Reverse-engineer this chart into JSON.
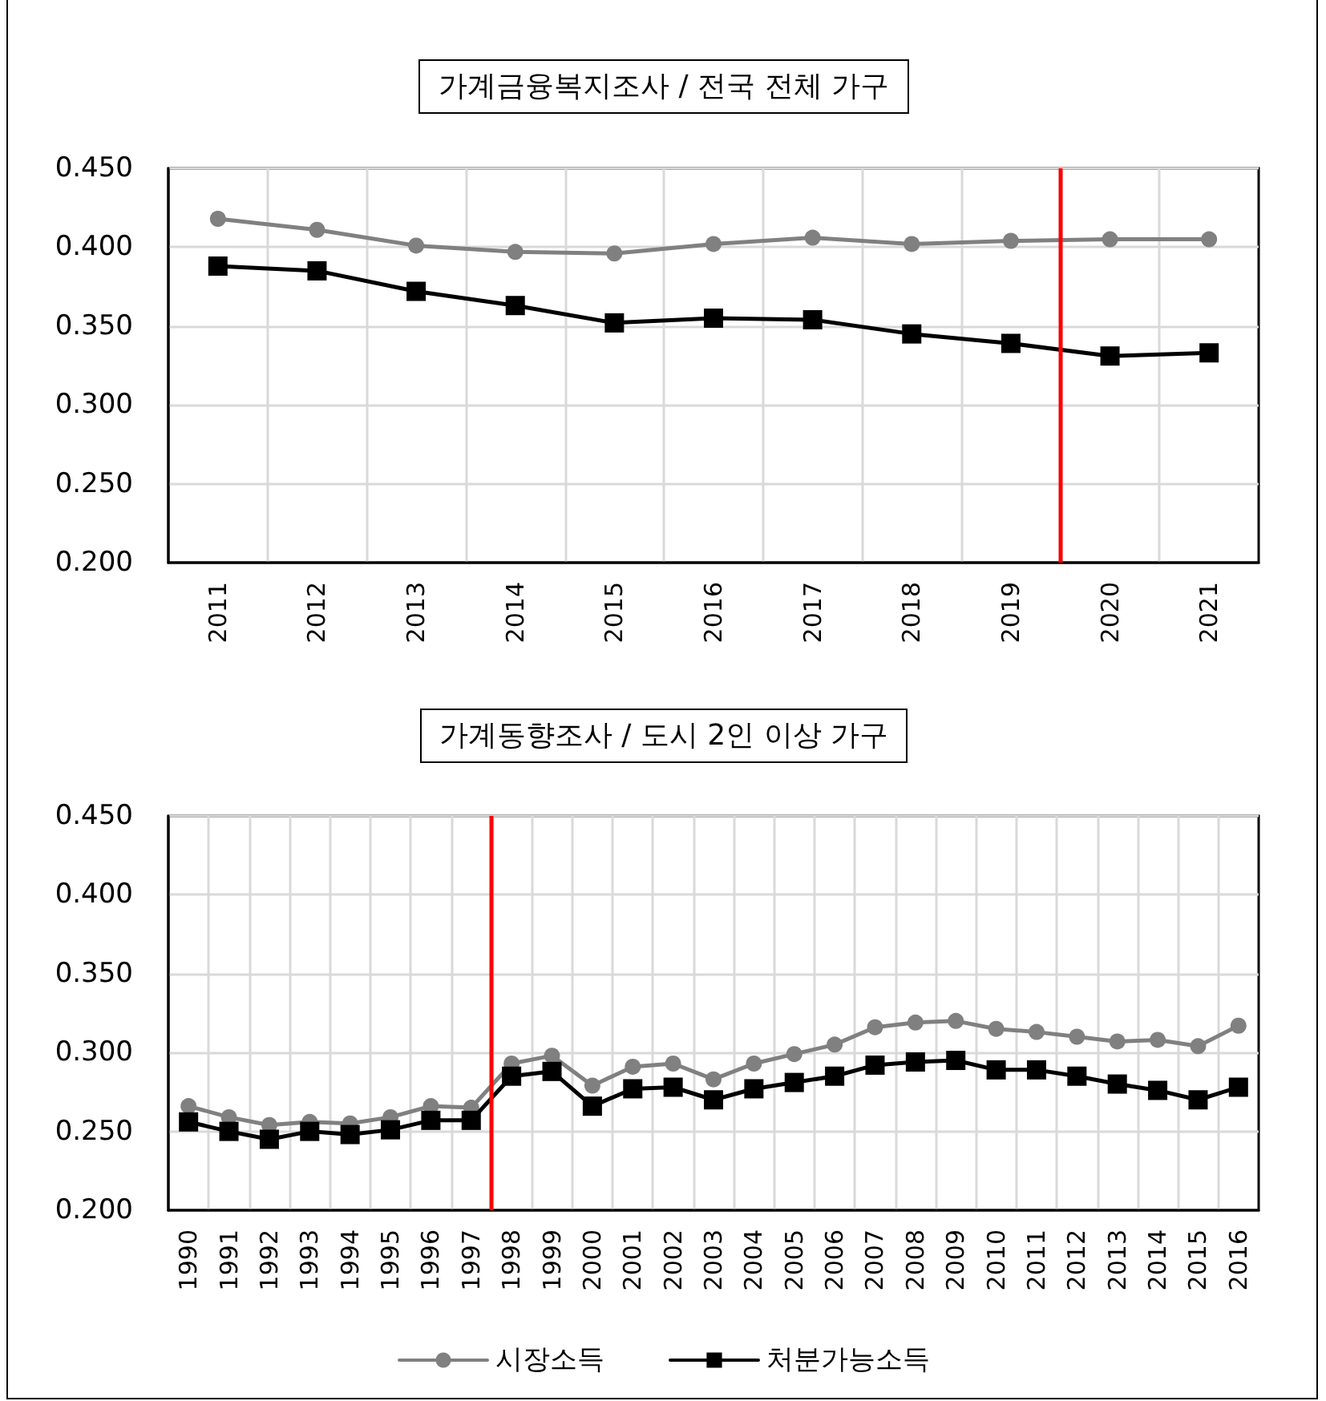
{
  "chart_data": [
    {
      "type": "line",
      "title": "가계금융복지조사 / 전국 전체 가구",
      "x": [
        2011,
        2012,
        2013,
        2014,
        2015,
        2016,
        2017,
        2018,
        2019,
        2020,
        2021
      ],
      "xlim": [
        2010.5,
        2021.5
      ],
      "xticks": [
        2011,
        2012,
        2013,
        2014,
        2015,
        2016,
        2017,
        2018,
        2019,
        2020,
        2021
      ],
      "ylim": [
        0.2,
        0.45
      ],
      "yticks": [
        {
          "value": 0.2,
          "label": "0.200"
        },
        {
          "value": 0.25,
          "label": "0.250"
        },
        {
          "value": 0.3,
          "label": "0.300"
        },
        {
          "value": 0.35,
          "label": "0.350"
        },
        {
          "value": 0.4,
          "label": "0.400"
        },
        {
          "value": 0.45,
          "label": "0.450"
        }
      ],
      "grid": true,
      "series": [
        {
          "color": "#808080",
          "marker": "circle",
          "values": [
            0.418,
            0.411,
            0.401,
            0.397,
            0.396,
            0.402,
            0.406,
            0.402,
            0.404,
            0.405,
            0.405
          ]
        },
        {
          "color": "#000000",
          "marker": "square",
          "values": [
            0.388,
            0.385,
            0.372,
            0.363,
            0.352,
            0.355,
            0.354,
            0.345,
            0.339,
            0.331,
            0.333
          ]
        }
      ],
      "ref_lines": [
        {
          "axis": "x",
          "value": 2019.5,
          "color": "#ff0000"
        }
      ]
    },
    {
      "type": "line",
      "title": "가계동향조사 / 도시 2인 이상 가구",
      "x": [
        1990,
        1991,
        1992,
        1993,
        1994,
        1995,
        1996,
        1997,
        1998,
        1999,
        2000,
        2001,
        2002,
        2003,
        2004,
        2005,
        2006,
        2007,
        2008,
        2009,
        2010,
        2011,
        2012,
        2013,
        2014,
        2015,
        2016
      ],
      "xlim": [
        1989.5,
        2016.5
      ],
      "xticks": [
        1990,
        1991,
        1992,
        1993,
        1994,
        1995,
        1996,
        1997,
        1998,
        1999,
        2000,
        2001,
        2002,
        2003,
        2004,
        2005,
        2006,
        2007,
        2008,
        2009,
        2010,
        2011,
        2012,
        2013,
        2014,
        2015,
        2016
      ],
      "ylim": [
        0.2,
        0.45
      ],
      "yticks": [
        {
          "value": 0.2,
          "label": "0.200"
        },
        {
          "value": 0.25,
          "label": "0.250"
        },
        {
          "value": 0.3,
          "label": "0.300"
        },
        {
          "value": 0.35,
          "label": "0.350"
        },
        {
          "value": 0.4,
          "label": "0.400"
        },
        {
          "value": 0.45,
          "label": "0.450"
        }
      ],
      "grid": true,
      "legend": "bottom",
      "series": [
        {
          "name": "시장소득",
          "color": "#808080",
          "marker": "circle",
          "values": [
            0.266,
            0.259,
            0.254,
            0.256,
            0.255,
            0.259,
            0.266,
            0.265,
            0.293,
            0.298,
            0.279,
            0.291,
            0.293,
            0.283,
            0.293,
            0.299,
            0.305,
            0.316,
            0.319,
            0.32,
            0.315,
            0.313,
            0.31,
            0.307,
            0.308,
            0.304,
            0.317
          ]
        },
        {
          "name": "처분가능소득",
          "color": "#000000",
          "marker": "square",
          "values": [
            0.256,
            0.25,
            0.245,
            0.25,
            0.248,
            0.251,
            0.257,
            0.257,
            0.285,
            0.288,
            0.266,
            0.277,
            0.278,
            0.27,
            0.277,
            0.281,
            0.285,
            0.292,
            0.294,
            0.295,
            0.289,
            0.289,
            0.285,
            0.28,
            0.276,
            0.27,
            0.278
          ]
        }
      ],
      "ref_lines": [
        {
          "axis": "x",
          "value": 1997.5,
          "color": "#ff0000"
        }
      ]
    }
  ]
}
